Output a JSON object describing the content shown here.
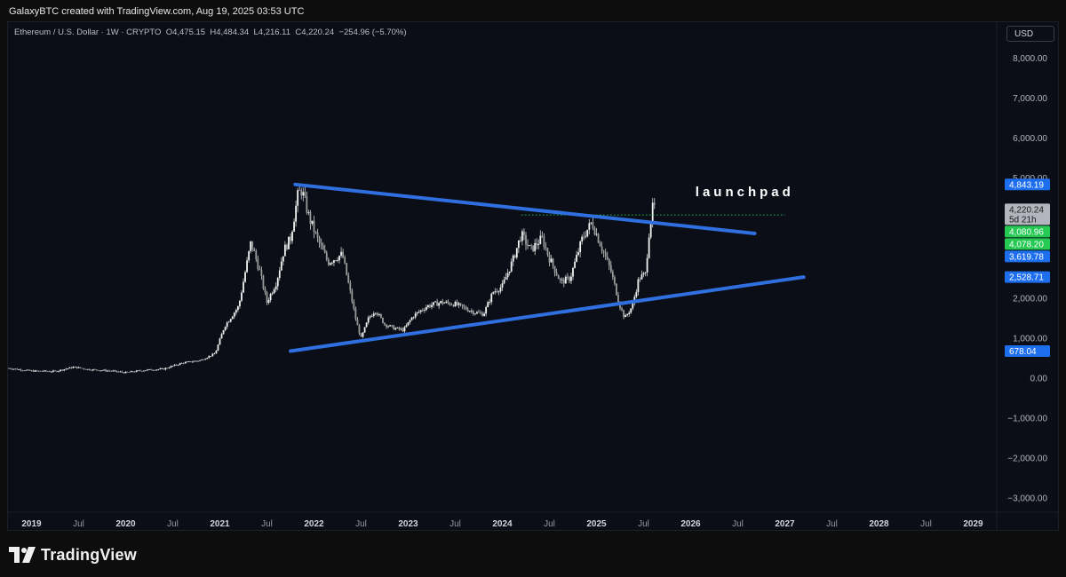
{
  "caption": "GalaxyBTC created with TradingView.com, Aug 19, 2025 03:53 UTC",
  "legend": {
    "symbol": "Ethereum / U.S. Dollar · 1W · CRYPTO",
    "open": "O4,475.15",
    "high": "H4,484.34",
    "low": "L4,216.11",
    "close": "C4,220.24",
    "change": "−254.96 (−5.70%)"
  },
  "currency_label": "USD",
  "brand": "TradingView",
  "colors": {
    "background": "#0b0e17",
    "candle": "#e8e8e8",
    "trendline": "#2f6fe0",
    "badge_blue": "#1e6ff0",
    "badge_green": "#26c953",
    "badge_gray": "#b2b5be"
  },
  "chart_data": {
    "type": "candlestick",
    "title": "",
    "annotation": "launchpad",
    "x_ticks": [
      "2019",
      "Jul",
      "2020",
      "Jul",
      "2021",
      "Jul",
      "2022",
      "Jul",
      "2023",
      "Jul",
      "2024",
      "Jul",
      "2025",
      "Jul",
      "2026",
      "Jul",
      "2027",
      "Jul",
      "2028",
      "Jul",
      "2029"
    ],
    "y_ticks": [
      "8,000.00",
      "7,000.00",
      "6,000.00",
      "5,000.00",
      "4,000.00",
      "3,000.00",
      "2,000.00",
      "1,000.00",
      "0.00",
      "−1,000.00",
      "−2,000.00",
      "−3,000.00"
    ],
    "y_tick_values": [
      8000,
      7000,
      6000,
      5000,
      4000,
      3000,
      2000,
      1000,
      0,
      -1000,
      -2000,
      -3000
    ],
    "ylim": [
      -3350,
      8900
    ],
    "xlim": [
      2018.75,
      2029.25
    ],
    "price_path": [
      [
        2018.75,
        250
      ],
      [
        2019.0,
        180
      ],
      [
        2019.25,
        170
      ],
      [
        2019.45,
        280
      ],
      [
        2019.6,
        220
      ],
      [
        2019.85,
        180
      ],
      [
        2020.0,
        140
      ],
      [
        2020.2,
        200
      ],
      [
        2020.4,
        230
      ],
      [
        2020.6,
        380
      ],
      [
        2020.8,
        450
      ],
      [
        2020.95,
        620
      ],
      [
        2021.05,
        1300
      ],
      [
        2021.2,
        1800
      ],
      [
        2021.33,
        3400
      ],
      [
        2021.42,
        2700
      ],
      [
        2021.5,
        1900
      ],
      [
        2021.6,
        2400
      ],
      [
        2021.68,
        3200
      ],
      [
        2021.75,
        3500
      ],
      [
        2021.83,
        4600
      ],
      [
        2021.87,
        4700
      ],
      [
        2021.95,
        4000
      ],
      [
        2022.05,
        3400
      ],
      [
        2022.15,
        2900
      ],
      [
        2022.3,
        3100
      ],
      [
        2022.38,
        2200
      ],
      [
        2022.45,
        1400
      ],
      [
        2022.5,
        1000
      ],
      [
        2022.58,
        1500
      ],
      [
        2022.65,
        1700
      ],
      [
        2022.75,
        1350
      ],
      [
        2022.85,
        1250
      ],
      [
        2022.95,
        1200
      ],
      [
        2023.05,
        1550
      ],
      [
        2023.2,
        1800
      ],
      [
        2023.35,
        1900
      ],
      [
        2023.5,
        1850
      ],
      [
        2023.7,
        1650
      ],
      [
        2023.8,
        1600
      ],
      [
        2023.9,
        2150
      ],
      [
        2024.0,
        2300
      ],
      [
        2024.12,
        3000
      ],
      [
        2024.2,
        3600
      ],
      [
        2024.3,
        3200
      ],
      [
        2024.42,
        3500
      ],
      [
        2024.5,
        3000
      ],
      [
        2024.62,
        2400
      ],
      [
        2024.72,
        2500
      ],
      [
        2024.85,
        3500
      ],
      [
        2024.95,
        3900
      ],
      [
        2025.05,
        3300
      ],
      [
        2025.15,
        2700
      ],
      [
        2025.25,
        1800
      ],
      [
        2025.3,
        1500
      ],
      [
        2025.38,
        1800
      ],
      [
        2025.45,
        2500
      ],
      [
        2025.52,
        2600
      ],
      [
        2025.56,
        3700
      ],
      [
        2025.6,
        4300
      ],
      [
        2025.63,
        4220
      ]
    ],
    "trendlines": [
      {
        "name": "upper",
        "from": [
          2021.8,
          4843
        ],
        "to": [
          2026.68,
          3619
        ]
      },
      {
        "name": "lower",
        "from": [
          2021.75,
          678
        ],
        "to": [
          2027.2,
          2528
        ]
      }
    ],
    "reference_line": 4080.96,
    "price_badges": [
      {
        "label": "4,843.19",
        "value": 4843.19,
        "color": "blue"
      },
      {
        "label": "4,220.24",
        "sub": "5d 21h",
        "value": 4220.24,
        "color": "gray"
      },
      {
        "label": "4,080.96",
        "value": 4080.96,
        "color": "green"
      },
      {
        "label": "4,078.20",
        "value": 4078.2,
        "color": "green"
      },
      {
        "label": "3,619.78",
        "value": 3619.78,
        "color": "blue"
      },
      {
        "label": "2,528.71",
        "value": 2528.71,
        "color": "blue"
      },
      {
        "label": "678.04",
        "value": 678.04,
        "color": "blue"
      }
    ]
  }
}
